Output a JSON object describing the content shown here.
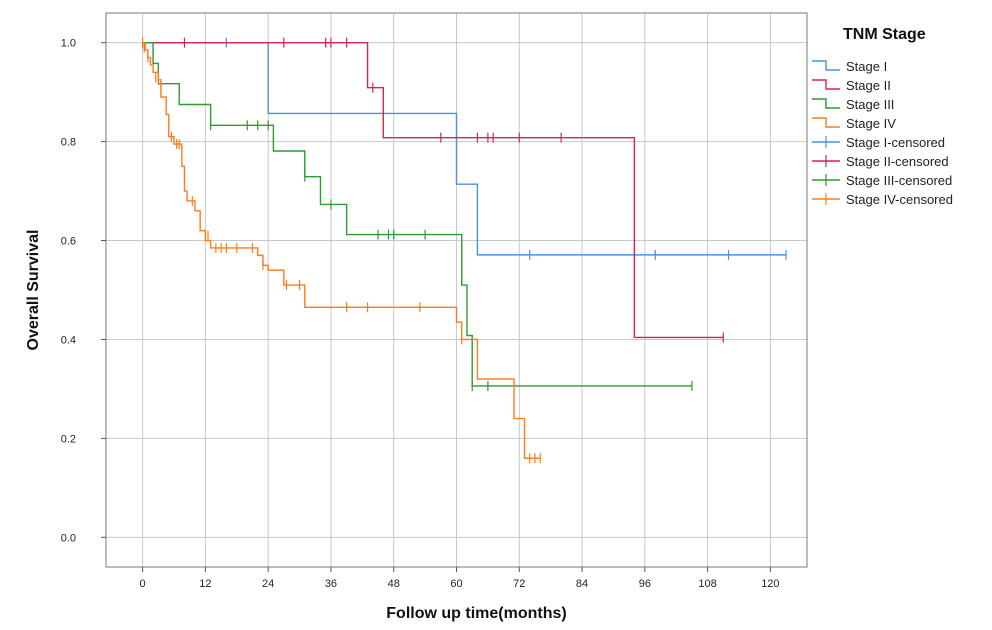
{
  "chart_data": {
    "type": "line",
    "subtype": "kaplan-meier step",
    "xlabel": "Follow up time(months)",
    "ylabel": "Overall Survival",
    "xlim": [
      -7,
      127
    ],
    "ylim": [
      -0.06,
      1.06
    ],
    "xticks": [
      0,
      12,
      24,
      36,
      48,
      60,
      72,
      84,
      96,
      108,
      120
    ],
    "yticks": [
      0.0,
      0.2,
      0.4,
      0.6,
      0.8,
      1.0
    ],
    "ytick_labels": [
      "0.0",
      "0.2",
      "0.4",
      "0.6",
      "0.8",
      "1.0"
    ],
    "grid": true,
    "legend": {
      "title": "TNM Stage",
      "position": "right",
      "entries": [
        {
          "label": "Stage I",
          "series": 0,
          "kind": "line"
        },
        {
          "label": "Stage II",
          "series": 1,
          "kind": "line"
        },
        {
          "label": "Stage III",
          "series": 2,
          "kind": "line"
        },
        {
          "label": "Stage IV",
          "series": 3,
          "kind": "line"
        },
        {
          "label": "Stage I-censored",
          "series": 0,
          "kind": "censor"
        },
        {
          "label": "Stage II-censored",
          "series": 1,
          "kind": "censor"
        },
        {
          "label": "Stage III-censored",
          "series": 2,
          "kind": "censor"
        },
        {
          "label": "Stage IV-censored",
          "series": 3,
          "kind": "censor"
        }
      ]
    },
    "series": [
      {
        "name": "Stage I",
        "color": "#4a90e2",
        "steps": [
          [
            0,
            1.0
          ],
          [
            24,
            0.857
          ],
          [
            60,
            0.714
          ],
          [
            64,
            0.571
          ],
          [
            123,
            0.571
          ]
        ],
        "censored": [
          [
            16,
            1.0
          ],
          [
            74,
            0.571
          ],
          [
            98,
            0.571
          ],
          [
            112,
            0.571
          ],
          [
            123,
            0.571
          ]
        ]
      },
      {
        "name": "Stage II",
        "color": "#d6244f",
        "steps": [
          [
            0,
            1.0
          ],
          [
            43,
            0.909
          ],
          [
            46,
            0.808
          ],
          [
            94,
            0.404
          ],
          [
            111,
            0.404
          ]
        ],
        "censored": [
          [
            8,
            1.0
          ],
          [
            27,
            1.0
          ],
          [
            35,
            1.0
          ],
          [
            36,
            1.0
          ],
          [
            39,
            1.0
          ],
          [
            44,
            0.909
          ],
          [
            57,
            0.808
          ],
          [
            64,
            0.808
          ],
          [
            66,
            0.808
          ],
          [
            67,
            0.808
          ],
          [
            72,
            0.808
          ],
          [
            80,
            0.808
          ],
          [
            111,
            0.404
          ]
        ]
      },
      {
        "name": "Stage III",
        "color": "#2f9a2f",
        "steps": [
          [
            0,
            1.0
          ],
          [
            2,
            0.958
          ],
          [
            3,
            0.917
          ],
          [
            7,
            0.875
          ],
          [
            13,
            0.833
          ],
          [
            25,
            0.781
          ],
          [
            31,
            0.729
          ],
          [
            34,
            0.673
          ],
          [
            39,
            0.612
          ],
          [
            61,
            0.51
          ],
          [
            62,
            0.408
          ],
          [
            63,
            0.306
          ],
          [
            105,
            0.306
          ]
        ],
        "censored": [
          [
            13,
            0.833
          ],
          [
            20,
            0.833
          ],
          [
            22,
            0.833
          ],
          [
            24,
            0.833
          ],
          [
            31,
            0.729
          ],
          [
            36,
            0.673
          ],
          [
            45,
            0.612
          ],
          [
            47,
            0.612
          ],
          [
            48,
            0.612
          ],
          [
            54,
            0.612
          ],
          [
            63,
            0.306
          ],
          [
            66,
            0.306
          ],
          [
            105,
            0.306
          ]
        ]
      },
      {
        "name": "Stage IV",
        "color": "#ff7a1a",
        "steps": [
          [
            0,
            1.0
          ],
          [
            0.5,
            0.985
          ],
          [
            1,
            0.97
          ],
          [
            1.5,
            0.955
          ],
          [
            2,
            0.94
          ],
          [
            3,
            0.925
          ],
          [
            3.5,
            0.89
          ],
          [
            4.5,
            0.855
          ],
          [
            5,
            0.81
          ],
          [
            6,
            0.795
          ],
          [
            7.5,
            0.75
          ],
          [
            8,
            0.7
          ],
          [
            8.5,
            0.68
          ],
          [
            10,
            0.66
          ],
          [
            11,
            0.62
          ],
          [
            12,
            0.6
          ],
          [
            13,
            0.585
          ],
          [
            22,
            0.57
          ],
          [
            23,
            0.55
          ],
          [
            24,
            0.54
          ],
          [
            27,
            0.51
          ],
          [
            31,
            0.465
          ],
          [
            60,
            0.435
          ],
          [
            61,
            0.4
          ],
          [
            64,
            0.32
          ],
          [
            71,
            0.24
          ],
          [
            73,
            0.16
          ],
          [
            76,
            0.16
          ]
        ],
        "censored": [
          [
            0,
            1.0
          ],
          [
            0.3,
            0.99
          ],
          [
            1,
            0.97
          ],
          [
            2.5,
            0.93
          ],
          [
            3,
            0.925
          ],
          [
            5.5,
            0.81
          ],
          [
            6.5,
            0.795
          ],
          [
            7,
            0.795
          ],
          [
            9.5,
            0.68
          ],
          [
            12.5,
            0.61
          ],
          [
            14,
            0.585
          ],
          [
            15,
            0.585
          ],
          [
            16,
            0.585
          ],
          [
            18,
            0.585
          ],
          [
            21,
            0.585
          ],
          [
            23,
            0.55
          ],
          [
            27.5,
            0.51
          ],
          [
            30,
            0.51
          ],
          [
            39,
            0.465
          ],
          [
            43,
            0.465
          ],
          [
            53,
            0.465
          ],
          [
            61,
            0.4
          ],
          [
            74,
            0.16
          ],
          [
            75,
            0.16
          ],
          [
            76,
            0.16
          ]
        ]
      }
    ]
  }
}
